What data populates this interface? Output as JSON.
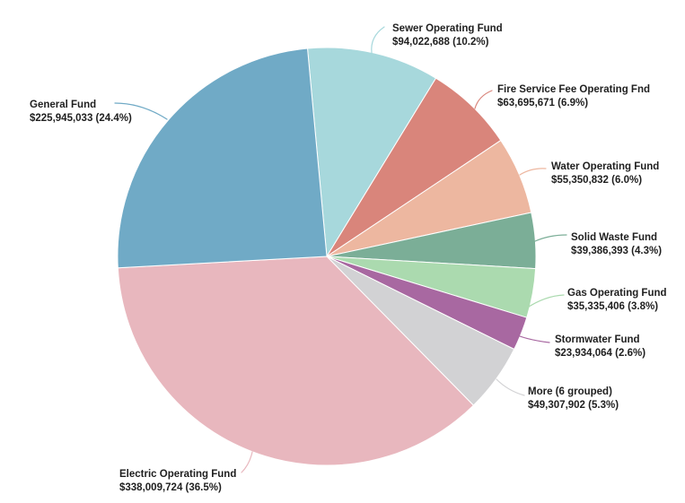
{
  "page": {
    "background_color": "#ffffff",
    "text_color": "#1f1f1f"
  },
  "chart_data": {
    "type": "pie",
    "title": "",
    "start_angle_deg": -5.3,
    "direction": "clockwise",
    "legend_position": "outside-labels-with-leader-lines",
    "series": [
      {
        "name": "Sewer Operating Fund",
        "value": 94022688,
        "pct": 10.2,
        "value_label": "$94,022,688 (10.2%)",
        "color": "#A7D8DC"
      },
      {
        "name": "Fire Service Fee Operating Fnd",
        "value": 63695671,
        "pct": 6.9,
        "value_label": "$63,695,671 (6.9%)",
        "color": "#D9857B"
      },
      {
        "name": "Water Operating Fund",
        "value": 55350832,
        "pct": 6.0,
        "value_label": "$55,350,832 (6.0%)",
        "color": "#EDB7A0"
      },
      {
        "name": "Solid Waste Fund",
        "value": 39386393,
        "pct": 4.3,
        "value_label": "$39,386,393 (4.3%)",
        "color": "#7BAE97"
      },
      {
        "name": "Gas Operating Fund",
        "value": 35335406,
        "pct": 3.8,
        "value_label": "$35,335,406 (3.8%)",
        "color": "#ABDAAF"
      },
      {
        "name": "Stormwater Fund",
        "value": 23934064,
        "pct": 2.6,
        "value_label": "$23,934,064 (2.6%)",
        "color": "#A868A1"
      },
      {
        "name": "More (6 grouped)",
        "value": 49307902,
        "pct": 5.3,
        "value_label": "$49,307,902 (5.3%)",
        "color": "#D2D2D4"
      },
      {
        "name": "Electric Operating Fund",
        "value": 338009724,
        "pct": 36.5,
        "value_label": "$338,009,724 (36.5%)",
        "color": "#E8B7BE"
      },
      {
        "name": "General Fund",
        "value": 225945033,
        "pct": 24.4,
        "value_label": "$225,945,033 (24.4%)",
        "color": "#70AAC6"
      }
    ]
  }
}
